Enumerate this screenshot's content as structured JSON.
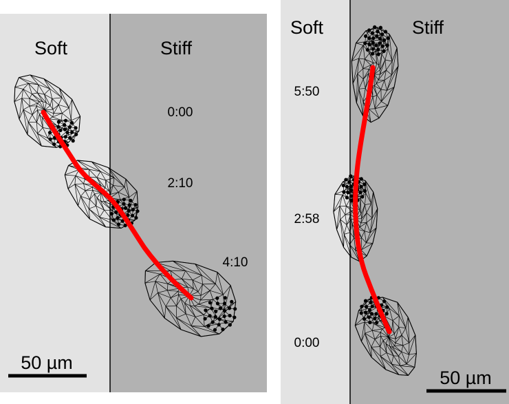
{
  "panels": [
    {
      "soft_label": "Soft",
      "stiff_label": "Stiff",
      "times": [
        "0:00",
        "2:10",
        "4:10"
      ],
      "scale_bar": "50 µm"
    },
    {
      "soft_label": "Soft",
      "stiff_label": "Stiff",
      "times": [
        "5:50",
        "2:58",
        "0:00"
      ],
      "scale_bar": "50 µm"
    }
  ],
  "colors": {
    "soft_region": "#e3e3e3",
    "stiff_region": "#b2b2b2",
    "trajectory": "#ff0000",
    "mesh": "#000000"
  }
}
